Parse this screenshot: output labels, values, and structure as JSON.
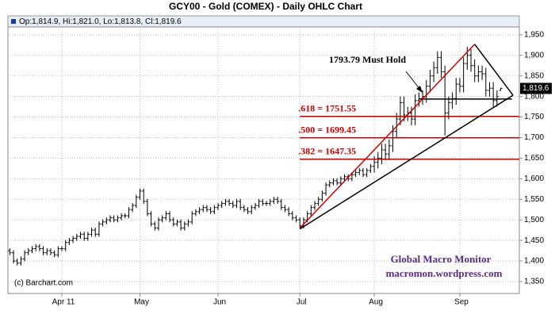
{
  "chart_data": {
    "type": "ohlc",
    "title": "GCY00 - Gold (COMEX) - Daily OHLC Chart",
    "ohlc_label": "Op:1,814.9, Hi:1,821.0, Lo:1,813.8, Cl:1,819.6",
    "last_price_label": "1,819.6",
    "source": "(c) Barchart.com",
    "watermark": [
      "Global Macro Monitor",
      "macromon.wordpress.com"
    ],
    "color": "#000000",
    "grid": true,
    "xlim": [
      -0.5,
      137
    ],
    "ylim": [
      1321,
      1969
    ],
    "xticks": [
      {
        "value": 14,
        "label": "Apr 11"
      },
      {
        "value": 35,
        "label": "May"
      },
      {
        "value": 56,
        "label": "Jun"
      },
      {
        "value": 78,
        "label": "Jul"
      },
      {
        "value": 98,
        "label": "Aug"
      },
      {
        "value": 121,
        "label": "Sep"
      }
    ],
    "yticks": [
      {
        "value": 1350,
        "label": "1,350"
      },
      {
        "value": 1400,
        "label": "1,400"
      },
      {
        "value": 1450,
        "label": "1,450"
      },
      {
        "value": 1500,
        "label": "1,500"
      },
      {
        "value": 1550,
        "label": "1,550"
      },
      {
        "value": 1600,
        "label": "1,600"
      },
      {
        "value": 1650,
        "label": "1,650"
      },
      {
        "value": 1700,
        "label": "1,700"
      },
      {
        "value": 1750,
        "label": "1,750"
      },
      {
        "value": 1800,
        "label": "1,800"
      },
      {
        "value": 1850,
        "label": "1,850"
      },
      {
        "value": 1900,
        "label": "1,900"
      },
      {
        "value": 1950,
        "label": "1,950"
      }
    ],
    "open": [
      1425,
      1420,
      1400,
      1395,
      1405,
      1420,
      1425,
      1430,
      1435,
      1430,
      1420,
      1425,
      1420,
      1415,
      1430,
      1430,
      1445,
      1450,
      1455,
      1460,
      1465,
      1455,
      1465,
      1475,
      1465,
      1490,
      1495,
      1500,
      1505,
      1500,
      1505,
      1510,
      1510,
      1525,
      1535,
      1555,
      1570,
      1545,
      1515,
      1490,
      1480,
      1500,
      1505,
      1515,
      1500,
      1490,
      1495,
      1480,
      1490,
      1495,
      1515,
      1520,
      1525,
      1530,
      1525,
      1520,
      1530,
      1535,
      1540,
      1545,
      1540,
      1535,
      1545,
      1530,
      1525,
      1520,
      1530,
      1535,
      1545,
      1540,
      1540,
      1545,
      1550,
      1545,
      1530,
      1525,
      1515,
      1505,
      1500,
      1485,
      1500,
      1515,
      1530,
      1540,
      1550,
      1565,
      1585,
      1590,
      1595,
      1590,
      1600,
      1605,
      1600,
      1610,
      1615,
      1620,
      1610,
      1620,
      1630,
      1640,
      1650,
      1670,
      1660,
      1680,
      1715,
      1745,
      1785,
      1755,
      1760,
      1745,
      1790,
      1795,
      1800,
      1825,
      1850,
      1870,
      1895,
      1860,
      1760,
      1785,
      1795,
      1830,
      1825,
      1880,
      1900,
      1875,
      1850,
      1860,
      1855,
      1815,
      1820,
      1790,
      1814.9
    ],
    "high": [
      1431,
      1426,
      1406,
      1411,
      1426,
      1431,
      1436,
      1441,
      1441,
      1436,
      1431,
      1431,
      1426,
      1436,
      1436,
      1451,
      1456,
      1461,
      1466,
      1471,
      1471,
      1471,
      1481,
      1481,
      1496,
      1501,
      1506,
      1511,
      1511,
      1511,
      1516,
      1516,
      1531,
      1541,
      1561,
      1576,
      1576,
      1551,
      1521,
      1496,
      1506,
      1511,
      1521,
      1521,
      1506,
      1501,
      1501,
      1496,
      1501,
      1521,
      1526,
      1531,
      1536,
      1536,
      1531,
      1536,
      1541,
      1546,
      1551,
      1551,
      1546,
      1551,
      1551,
      1536,
      1531,
      1536,
      1541,
      1551,
      1551,
      1546,
      1551,
      1556,
      1556,
      1551,
      1536,
      1531,
      1521,
      1511,
      1506,
      1506,
      1521,
      1536,
      1546,
      1556,
      1571,
      1591,
      1596,
      1601,
      1601,
      1606,
      1611,
      1611,
      1616,
      1621,
      1626,
      1626,
      1626,
      1636,
      1655,
      1665,
      1685,
      1685,
      1695,
      1730,
      1760,
      1800,
      1800,
      1775,
      1775,
      1805,
      1810,
      1815,
      1840,
      1865,
      1885,
      1910,
      1910,
      1875,
      1800,
      1810,
      1845,
      1845,
      1895,
      1921,
      1915,
      1890,
      1875,
      1875,
      1870,
      1835,
      1835,
      1815,
      1821
    ],
    "low": [
      1414,
      1394,
      1389,
      1389,
      1399,
      1414,
      1419,
      1424,
      1424,
      1414,
      1414,
      1414,
      1409,
      1409,
      1424,
      1424,
      1439,
      1444,
      1449,
      1454,
      1449,
      1449,
      1459,
      1459,
      1459,
      1484,
      1489,
      1494,
      1494,
      1494,
      1499,
      1504,
      1504,
      1519,
      1529,
      1549,
      1539,
      1509,
      1484,
      1474,
      1474,
      1494,
      1499,
      1494,
      1484,
      1484,
      1474,
      1474,
      1484,
      1489,
      1509,
      1514,
      1519,
      1519,
      1514,
      1514,
      1524,
      1529,
      1534,
      1534,
      1529,
      1529,
      1524,
      1519,
      1514,
      1514,
      1524,
      1529,
      1534,
      1534,
      1534,
      1539,
      1539,
      1524,
      1519,
      1509,
      1499,
      1494,
      1479,
      1479,
      1494,
      1509,
      1524,
      1534,
      1544,
      1559,
      1579,
      1584,
      1584,
      1584,
      1594,
      1594,
      1594,
      1604,
      1609,
      1604,
      1604,
      1614,
      1615,
      1625,
      1635,
      1645,
      1645,
      1665,
      1700,
      1730,
      1740,
      1740,
      1730,
      1730,
      1775,
      1780,
      1785,
      1810,
      1835,
      1855,
      1845,
      1705,
      1745,
      1770,
      1780,
      1810,
      1810,
      1865,
      1860,
      1835,
      1835,
      1840,
      1800,
      1800,
      1775,
      1775,
      1813.8
    ],
    "close": [
      1420,
      1400,
      1395,
      1405,
      1420,
      1425,
      1430,
      1435,
      1430,
      1420,
      1425,
      1420,
      1415,
      1430,
      1430,
      1445,
      1450,
      1455,
      1460,
      1465,
      1455,
      1465,
      1475,
      1465,
      1490,
      1495,
      1500,
      1505,
      1500,
      1505,
      1510,
      1510,
      1525,
      1535,
      1555,
      1570,
      1545,
      1515,
      1490,
      1480,
      1500,
      1505,
      1515,
      1500,
      1490,
      1495,
      1480,
      1490,
      1495,
      1515,
      1520,
      1525,
      1530,
      1525,
      1520,
      1530,
      1535,
      1540,
      1545,
      1540,
      1535,
      1545,
      1530,
      1525,
      1520,
      1530,
      1535,
      1545,
      1540,
      1540,
      1545,
      1550,
      1545,
      1530,
      1525,
      1515,
      1505,
      1500,
      1485,
      1500,
      1515,
      1530,
      1540,
      1550,
      1565,
      1585,
      1590,
      1595,
      1590,
      1600,
      1605,
      1600,
      1610,
      1615,
      1620,
      1610,
      1620,
      1630,
      1640,
      1650,
      1670,
      1660,
      1680,
      1715,
      1745,
      1785,
      1755,
      1760,
      1745,
      1790,
      1795,
      1800,
      1825,
      1850,
      1870,
      1895,
      1860,
      1760,
      1785,
      1795,
      1830,
      1825,
      1880,
      1900,
      1875,
      1850,
      1860,
      1855,
      1815,
      1820,
      1790,
      1800,
      1819.6
    ],
    "levels": [
      {
        "label": ".618 = 1751.55",
        "value": 1751.55,
        "start": 78,
        "color": "#cc0000"
      },
      {
        "label": ".500 = 1699.45",
        "value": 1699.45,
        "start": 78,
        "color": "#cc0000"
      },
      {
        "label": ".382 = 1647.35",
        "value": 1647.35,
        "start": 78,
        "color": "#cc0000"
      }
    ],
    "support": {
      "label": "1793.79 Must Hold",
      "value": 1793.79,
      "start": 110,
      "end": 135,
      "color": "#000000"
    },
    "trendlines": [
      {
        "color": "#cc0000",
        "points": [
          [
            78,
            1480
          ],
          [
            125,
            1927
          ]
        ]
      },
      {
        "color": "#000000",
        "points": [
          [
            78,
            1478
          ],
          [
            135.3,
            1803
          ]
        ]
      },
      {
        "color": "#000000",
        "points": [
          [
            125,
            1927
          ],
          [
            135.3,
            1803
          ]
        ]
      }
    ]
  }
}
